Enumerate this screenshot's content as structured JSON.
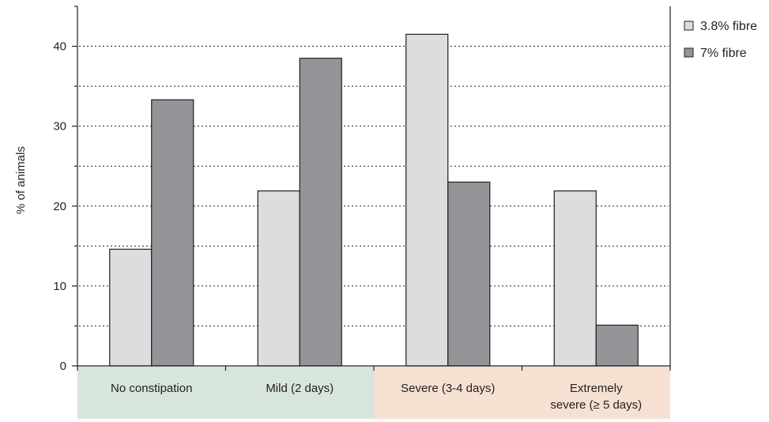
{
  "chart_data": {
    "type": "bar",
    "ylabel": "% of animals",
    "ylim": [
      0,
      45
    ],
    "yticks": [
      0,
      10,
      20,
      30,
      40
    ],
    "grid": "dotted horizontal",
    "legend_position": "top-right",
    "categories": [
      "No constipation",
      "Mild (2 days)",
      "Severe (3-4 days)",
      "Extremely severe (≥ 5 days)"
    ],
    "category_lines": [
      [
        "No constipation"
      ],
      [
        "Mild (2 days)"
      ],
      [
        "Severe (3-4 days)"
      ],
      [
        "Extremely",
        "severe (≥ 5 days)"
      ]
    ],
    "category_band_colors": [
      "#d7e5dc",
      "#d7e5dc",
      "#f6e0d1",
      "#f6e0d1"
    ],
    "series": [
      {
        "name": "3.8% fibre",
        "color": "#dcdddf",
        "values": [
          14.6,
          21.9,
          41.5,
          21.9
        ]
      },
      {
        "name": "7% fibre",
        "color": "#939598",
        "values": [
          33.3,
          38.5,
          23.0,
          5.1
        ]
      }
    ]
  }
}
